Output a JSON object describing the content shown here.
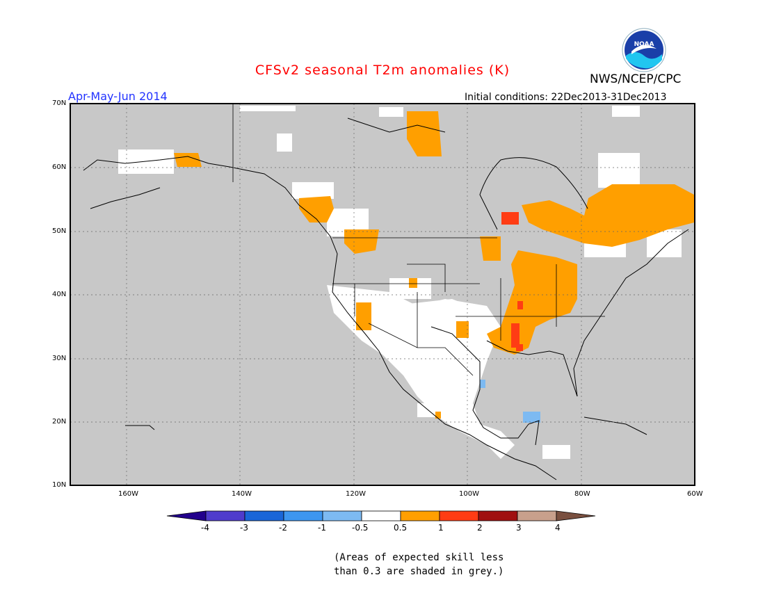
{
  "header": {
    "title": "CFSv2 seasonal T2m anomalies (K)",
    "period": "Apr-May-Jun 2014",
    "initial_conditions": "Initial conditions: 22Dec2013-31Dec2013",
    "agency": "NWS/NCEP/CPC",
    "logo_text": "NOAA"
  },
  "map": {
    "lat_labels": [
      "70N",
      "60N",
      "50N",
      "40N",
      "30N",
      "20N",
      "10N"
    ],
    "lon_labels": [
      "160W",
      "140W",
      "120W",
      "100W",
      "80W",
      "60W"
    ],
    "extent": {
      "lon": [
        -170,
        -60
      ],
      "lat": [
        10,
        70
      ]
    },
    "grid": true,
    "colors": {
      "low_skill_grey": "#c8c8c8",
      "neutral": "#ffffff",
      "warm_0_5_to_1": "#ff9f00",
      "warm_1_to_2": "#ff3c14",
      "cool_minus1_to_minus0_5": "#7dbaf2"
    }
  },
  "colorbar": {
    "labels": [
      "-4",
      "-3",
      "-2",
      "-1",
      "-0.5",
      "0.5",
      "1",
      "2",
      "3",
      "4"
    ],
    "colors": [
      "#22008c",
      "#4f3ccc",
      "#1a66d8",
      "#3d96f0",
      "#7dbaf2",
      "#ffffff",
      "#ff9f00",
      "#ff3c14",
      "#a01010",
      "#c8a08c",
      "#7a5040"
    ]
  },
  "note": {
    "line1": "(Areas of expected skill less",
    "line2": "than 0.3 are shaded in grey.)"
  }
}
